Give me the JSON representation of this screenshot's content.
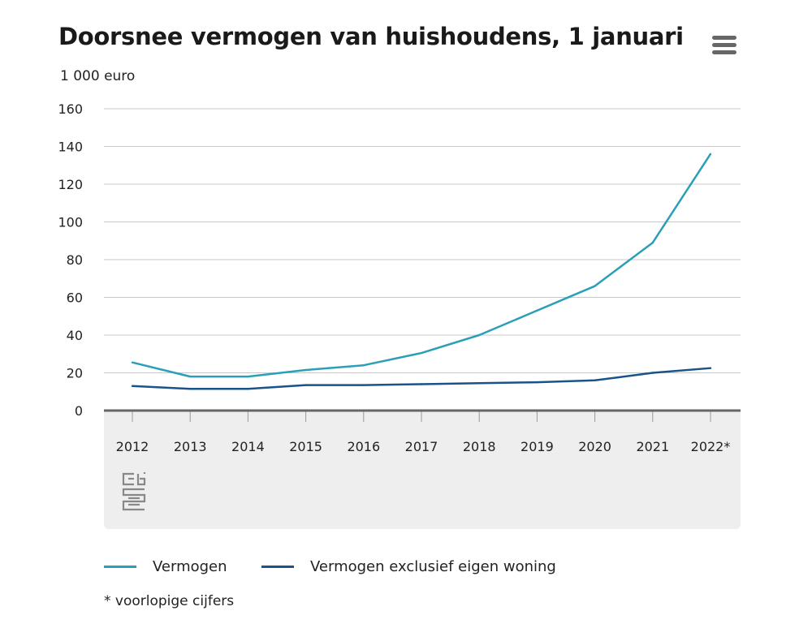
{
  "header": {
    "title": "Doorsnee vermogen van huishoudens, 1 januari",
    "menu_icon": "hamburger-menu-icon"
  },
  "colors": {
    "vermogen": "#2aa0b8",
    "vermogen_excl": "#1a5289",
    "grid": "#c8c8c8",
    "axis": "#666666",
    "footer_bg": "#eeeeee",
    "logo": "#888888"
  },
  "chart_data": {
    "type": "line",
    "unit_label": "1 000 euro",
    "categories": [
      "2012",
      "2013",
      "2014",
      "2015",
      "2016",
      "2017",
      "2018",
      "2019",
      "2020",
      "2021",
      "2022*"
    ],
    "ylim": [
      0,
      160
    ],
    "yticks": [
      "0",
      "20",
      "40",
      "60",
      "80",
      "100",
      "120",
      "140",
      "160"
    ],
    "grid": true,
    "legend_position": "bottom",
    "series": [
      {
        "name": "Vermogen",
        "color_key": "vermogen",
        "values": [
          25.5,
          18,
          18,
          21.5,
          24,
          30.5,
          40,
          53,
          66,
          89,
          136
        ]
      },
      {
        "name": "Vermogen exclusief eigen woning",
        "color_key": "vermogen_excl",
        "values": [
          13,
          11.5,
          11.5,
          13.5,
          13.5,
          14,
          14.5,
          15,
          16,
          20,
          22.5
        ]
      }
    ]
  },
  "footer": {
    "logo_icon": "cbs-logo-icon",
    "note": "* voorlopige cijfers"
  }
}
